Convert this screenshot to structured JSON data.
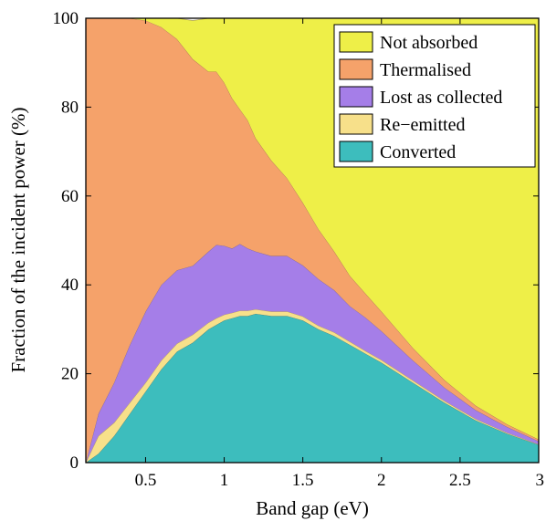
{
  "chart_data": {
    "type": "area",
    "stacked": true,
    "title": "",
    "xlabel": "Band gap (eV)",
    "ylabel": "Fraction of the incident power (%)",
    "xlim": [
      0.12,
      3.0
    ],
    "ylim": [
      0,
      100
    ],
    "xticks": [
      0.5,
      1,
      1.5,
      2,
      2.5,
      3
    ],
    "xtick_labels": [
      "0.5",
      "1",
      "1.5",
      "2",
      "2.5",
      "3"
    ],
    "yticks": [
      0,
      20,
      40,
      60,
      80,
      100
    ],
    "ytick_labels": [
      "0",
      "20",
      "40",
      "60",
      "80",
      "100"
    ],
    "grid": false,
    "legend_position": "top-right",
    "x": [
      0.12,
      0.2,
      0.3,
      0.4,
      0.5,
      0.6,
      0.7,
      0.8,
      0.9,
      0.95,
      1.0,
      1.05,
      1.1,
      1.15,
      1.2,
      1.3,
      1.4,
      1.5,
      1.6,
      1.7,
      1.8,
      1.9,
      2.0,
      2.2,
      2.4,
      2.6,
      2.8,
      3.0
    ],
    "series": [
      {
        "name": "Converted",
        "color": "#3dbdbd",
        "values": [
          0,
          2,
          6,
          11,
          16,
          21,
          25,
          27,
          30,
          31,
          32,
          32.5,
          33,
          33,
          33.5,
          33,
          33,
          32,
          30,
          28.5,
          26.5,
          24.5,
          22.5,
          18,
          13.5,
          9.5,
          6.5,
          4
        ]
      },
      {
        "name": "Re−emitted",
        "color": "#f7e08a",
        "values": [
          0,
          4,
          3,
          2.5,
          2,
          2,
          1.8,
          1.8,
          1.5,
          1.5,
          1.3,
          1.2,
          1.2,
          1.2,
          1,
          1,
          1,
          0.9,
          0.8,
          0.8,
          0.7,
          0.6,
          0.6,
          0.5,
          0.4,
          0.3,
          0.2,
          0.1
        ]
      },
      {
        "name": "Lost as collected",
        "color": "#a57ee8",
        "values": [
          0,
          5,
          9,
          13,
          16,
          17,
          16.5,
          15.5,
          16,
          16.5,
          15.5,
          14.5,
          15,
          14,
          13,
          12.5,
          12.5,
          11.5,
          10.5,
          9.5,
          8,
          7.5,
          6.5,
          4.5,
          3,
          2,
          1.3,
          0.7
        ]
      },
      {
        "name": "Thermalised",
        "color": "#f5a26a",
        "values": [
          100,
          89,
          82,
          73.5,
          65.5,
          58,
          52,
          46.5,
          40.5,
          39,
          36.7,
          33.8,
          30.3,
          28.8,
          25.5,
          21.5,
          17.5,
          14.1,
          11.2,
          8.7,
          6.8,
          5.4,
          4.4,
          2.8,
          1.7,
          1.0,
          0.6,
          0.4
        ]
      },
      {
        "name": "Not absorbed",
        "color": "#eeef48",
        "values": [
          0,
          0,
          0,
          0,
          0.5,
          2,
          4.7,
          8.7,
          12,
          12,
          14.5,
          18,
          20.5,
          23,
          27,
          32,
          36,
          41.5,
          47.5,
          52.5,
          58,
          62,
          66,
          74.2,
          81.4,
          87.2,
          91.4,
          94.8
        ]
      }
    ],
    "legend_order": [
      "Not absorbed",
      "Thermalised",
      "Lost as collected",
      "Re−emitted",
      "Converted"
    ]
  }
}
